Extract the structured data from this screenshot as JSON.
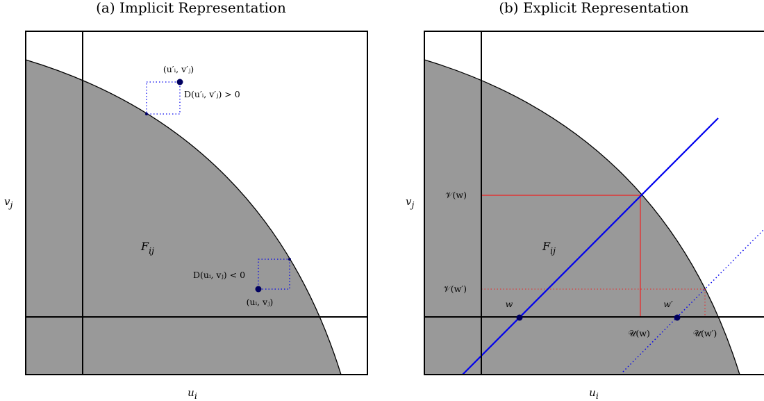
{
  "colors": {
    "feasible_fill": "#999999",
    "frame": "#000000",
    "blue": "#0000ee",
    "red": "#ee2222"
  },
  "panel_a": {
    "title": "(a) Implicit Representation",
    "xlabel": "u",
    "xlabel_sub": "i",
    "ylabel": "v",
    "ylabel_sub": "j",
    "region_label": "F",
    "region_sub": "ij",
    "point_prime": "(u′ᵢ, v′ⱼ)",
    "ineq_prime": "D(u′ᵢ, v′ⱼ) > 0",
    "point": "(uᵢ, vⱼ)",
    "ineq": "D(uᵢ, vⱼ) < 0"
  },
  "panel_b": {
    "title": "(b) Explicit Representation",
    "xlabel": "u",
    "xlabel_sub": "i",
    "ylabel": "v",
    "ylabel_sub": "j",
    "region_label": "F",
    "region_sub": "ij",
    "vw": "𝒱(w)",
    "vwp": "𝒱(w′)",
    "uw": "𝒰(w)",
    "uwp": "𝒰(w′)",
    "w": "w",
    "wp": "w′"
  }
}
